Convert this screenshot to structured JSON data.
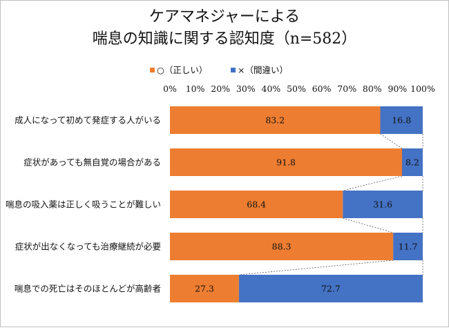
{
  "chart_data": {
    "type": "bar",
    "orientation": "horizontal",
    "stacked": "percent",
    "title_lines": [
      "ケアマネジャーによる",
      "喘息の知識に関する認知度（n=582）"
    ],
    "categories": [
      "成人になって初めて発症する人がいる",
      "症状があっても無自覚の場合がある",
      "喘息の吸入薬は正しく吸うことが難しい",
      "症状が出なくなっても治療継続が必要",
      "喘息での死亡はそのほとんどが高齢者"
    ],
    "series": [
      {
        "name": "○（正しい）",
        "color": "#ed7d31",
        "values": [
          83.2,
          91.8,
          68.4,
          88.3,
          27.3
        ]
      },
      {
        "name": "×（間違い）",
        "color": "#4472c4",
        "values": [
          16.8,
          8.2,
          31.6,
          11.7,
          72.7
        ]
      }
    ],
    "xlim": [
      0,
      100
    ],
    "x_ticks": [
      "0%",
      "10%",
      "20%",
      "30%",
      "40%",
      "50%",
      "60%",
      "70%",
      "80%",
      "90%",
      "100%"
    ],
    "legend_position": "top",
    "x_axis_position": "top",
    "series_lines": true,
    "grid": false
  }
}
